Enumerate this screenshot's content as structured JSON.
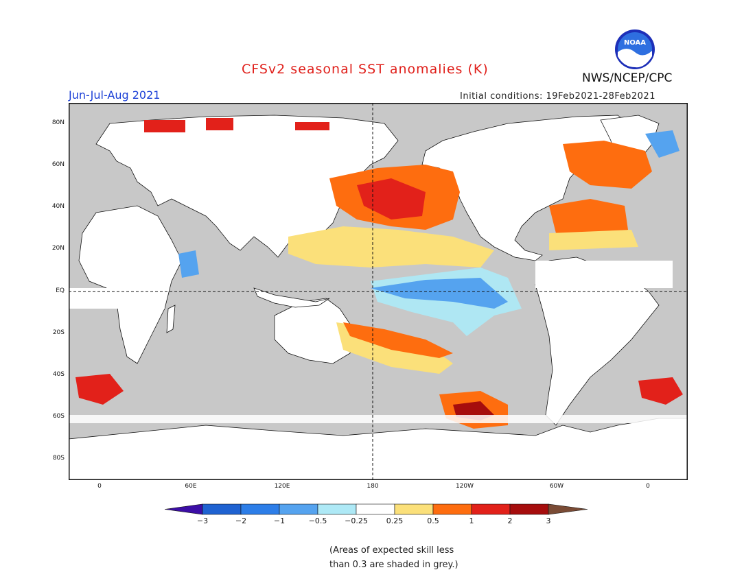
{
  "title": "CFSv2 seasonal SST anomalies (K)",
  "season": "Jun-Jul-Aug 2021",
  "initial_conditions": "Initial conditions: 19Feb2021-28Feb2021",
  "org": "NWS/NCEP/CPC",
  "logo_text": "NOAA",
  "lat_ticks": [
    "80N",
    "60N",
    "40N",
    "20N",
    "EQ",
    "20S",
    "40S",
    "60S",
    "80S"
  ],
  "lon_ticks": [
    "0",
    "60E",
    "120E",
    "180",
    "120W",
    "60W",
    "0"
  ],
  "colorbar": {
    "tick_labels": [
      "−3",
      "−2",
      "−1",
      "−0.5",
      "−0.25",
      "0.25",
      "0.5",
      "1",
      "2",
      "3"
    ],
    "colors": [
      "#3c0ea6",
      "#1f62d1",
      "#2d7ee8",
      "#55a3ef",
      "#aee9f6",
      "#ffffff",
      "#fbe07a",
      "#fe6d0f",
      "#e2211a",
      "#a60d0d",
      "#7a4b35"
    ]
  },
  "note": [
    "(Areas of expected skill less",
    "than 0.3 are shaded in grey.)"
  ],
  "colors": {
    "land": "#ffffff",
    "ocean_low_skill": "#c8c8c8",
    "title": "#e0201b",
    "season": "#1a3fd6"
  }
}
